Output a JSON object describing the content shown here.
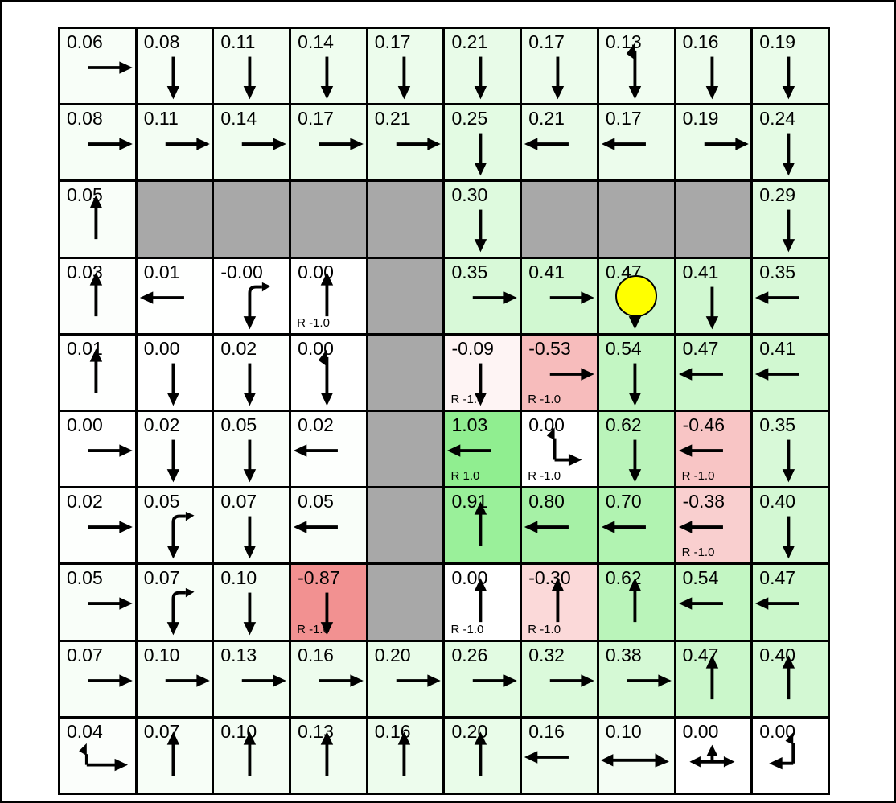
{
  "board": {
    "rows": 10,
    "cols": 10,
    "agent": {
      "row": 3,
      "col": 7,
      "color": "#ffff00"
    },
    "colors": {
      "positive_full": "#90ee90",
      "negative_full": "#f08080",
      "wall": "#a8a8a8",
      "grid_line": "#000000",
      "background": "#ffffff",
      "text": "#000000"
    },
    "cells": [
      [
        {
          "v": "0.06",
          "a": "right"
        },
        {
          "v": "0.08",
          "a": "down"
        },
        {
          "v": "0.11",
          "a": "down"
        },
        {
          "v": "0.14",
          "a": "down"
        },
        {
          "v": "0.17",
          "a": "down"
        },
        {
          "v": "0.21",
          "a": "down"
        },
        {
          "v": "0.17",
          "a": "down"
        },
        {
          "v": "0.13",
          "a": "updown"
        },
        {
          "v": "0.16",
          "a": "down"
        },
        {
          "v": "0.19",
          "a": "down"
        }
      ],
      [
        {
          "v": "0.08",
          "a": "right"
        },
        {
          "v": "0.11",
          "a": "right"
        },
        {
          "v": "0.14",
          "a": "right"
        },
        {
          "v": "0.17",
          "a": "right"
        },
        {
          "v": "0.21",
          "a": "right"
        },
        {
          "v": "0.25",
          "a": "down"
        },
        {
          "v": "0.21",
          "a": "left"
        },
        {
          "v": "0.17",
          "a": "left"
        },
        {
          "v": "0.19",
          "a": "right"
        },
        {
          "v": "0.24",
          "a": "down"
        }
      ],
      [
        {
          "v": "0.05",
          "a": "up"
        },
        {
          "w": true
        },
        {
          "w": true
        },
        {
          "w": true
        },
        {
          "w": true
        },
        {
          "v": "0.30",
          "a": "down"
        },
        {
          "w": true
        },
        {
          "w": true
        },
        {
          "w": true
        },
        {
          "v": "0.29",
          "a": "down"
        }
      ],
      [
        {
          "v": "0.03",
          "a": "up"
        },
        {
          "v": "0.01",
          "a": "left"
        },
        {
          "v": "-0.00",
          "a": "downright"
        },
        {
          "v": "0.00",
          "a": "up",
          "r": "R -1.0"
        },
        {
          "w": true
        },
        {
          "v": "0.35",
          "a": "right"
        },
        {
          "v": "0.41",
          "a": "right"
        },
        {
          "v": "0.47",
          "a": "down"
        },
        {
          "v": "0.41",
          "a": "down"
        },
        {
          "v": "0.35",
          "a": "left"
        }
      ],
      [
        {
          "v": "0.01",
          "a": "up"
        },
        {
          "v": "0.00",
          "a": "down"
        },
        {
          "v": "0.02",
          "a": "down"
        },
        {
          "v": "0.00",
          "a": "updown"
        },
        {
          "w": true
        },
        {
          "v": "-0.09",
          "a": "down",
          "r": "R -1.0"
        },
        {
          "v": "-0.53",
          "a": "right",
          "r": "R -1.0"
        },
        {
          "v": "0.54",
          "a": "down"
        },
        {
          "v": "0.47",
          "a": "left"
        },
        {
          "v": "0.41",
          "a": "left"
        }
      ],
      [
        {
          "v": "0.00",
          "a": "right"
        },
        {
          "v": "0.02",
          "a": "down"
        },
        {
          "v": "0.05",
          "a": "down"
        },
        {
          "v": "0.02",
          "a": "left"
        },
        {
          "w": true
        },
        {
          "v": "1.03",
          "a": "left",
          "r": "R 1.0"
        },
        {
          "v": "0.00",
          "a": "upright",
          "r": "R -1.0"
        },
        {
          "v": "0.62",
          "a": "down"
        },
        {
          "v": "-0.46",
          "a": "left",
          "r": "R -1.0"
        },
        {
          "v": "0.35",
          "a": "down"
        }
      ],
      [
        {
          "v": "0.02",
          "a": "right"
        },
        {
          "v": "0.05",
          "a": "downright"
        },
        {
          "v": "0.07",
          "a": "down"
        },
        {
          "v": "0.05",
          "a": "left"
        },
        {
          "w": true
        },
        {
          "v": "0.91",
          "a": "up"
        },
        {
          "v": "0.80",
          "a": "left"
        },
        {
          "v": "0.70",
          "a": "left"
        },
        {
          "v": "-0.38",
          "a": "left",
          "r": "R -1.0"
        },
        {
          "v": "0.40",
          "a": "down"
        }
      ],
      [
        {
          "v": "0.05",
          "a": "right"
        },
        {
          "v": "0.07",
          "a": "downright"
        },
        {
          "v": "0.10",
          "a": "down"
        },
        {
          "v": "-0.87",
          "a": "down",
          "r": "R -1.0"
        },
        {
          "w": true
        },
        {
          "v": "0.00",
          "a": "up",
          "r": "R -1.0"
        },
        {
          "v": "-0.30",
          "a": "up",
          "r": "R -1.0"
        },
        {
          "v": "0.62",
          "a": "up"
        },
        {
          "v": "0.54",
          "a": "left"
        },
        {
          "v": "0.47",
          "a": "left"
        }
      ],
      [
        {
          "v": "0.07",
          "a": "right"
        },
        {
          "v": "0.10",
          "a": "right"
        },
        {
          "v": "0.13",
          "a": "right"
        },
        {
          "v": "0.16",
          "a": "right"
        },
        {
          "v": "0.20",
          "a": "right"
        },
        {
          "v": "0.26",
          "a": "right"
        },
        {
          "v": "0.32",
          "a": "right"
        },
        {
          "v": "0.38",
          "a": "right"
        },
        {
          "v": "0.47",
          "a": "up"
        },
        {
          "v": "0.40",
          "a": "up"
        }
      ],
      [
        {
          "v": "0.04",
          "a": "uprightcorner"
        },
        {
          "v": "0.07",
          "a": "up"
        },
        {
          "v": "0.10",
          "a": "up"
        },
        {
          "v": "0.13",
          "a": "up"
        },
        {
          "v": "0.16",
          "a": "up"
        },
        {
          "v": "0.20",
          "a": "up"
        },
        {
          "v": "0.16",
          "a": "left"
        },
        {
          "v": "0.10",
          "a": "leftright"
        },
        {
          "v": "0.00",
          "a": "leftrightup"
        },
        {
          "v": "0.00",
          "a": "upleft"
        }
      ]
    ]
  }
}
